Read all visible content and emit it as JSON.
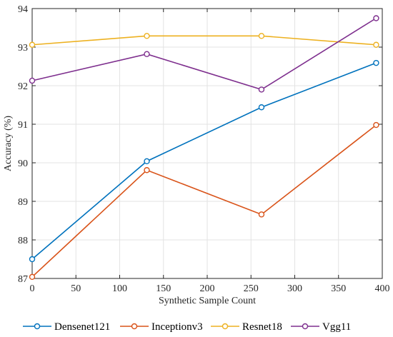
{
  "chart_data": {
    "type": "line",
    "xlabel": "Synthetic Sample Count",
    "ylabel": "Accuracy (%)",
    "xlim": [
      0,
      400
    ],
    "ylim": [
      87,
      94
    ],
    "xticks": [
      0,
      50,
      100,
      150,
      200,
      250,
      300,
      350,
      400
    ],
    "yticks": [
      87,
      88,
      89,
      90,
      91,
      92,
      93,
      94
    ],
    "grid": true,
    "marker": "circle",
    "legend_position": "bottom",
    "x": [
      0,
      131,
      262,
      393
    ],
    "series": [
      {
        "name": "Densenet121",
        "color": "#0072BD",
        "values": [
          87.5,
          90.04,
          91.44,
          92.59
        ]
      },
      {
        "name": "Inceptionv3",
        "color": "#D95319",
        "values": [
          87.04,
          89.81,
          88.66,
          90.98
        ]
      },
      {
        "name": "Resnet18",
        "color": "#EDB120",
        "values": [
          93.06,
          93.29,
          93.29,
          93.06
        ]
      },
      {
        "name": "Vgg11",
        "color": "#7E2F8E",
        "values": [
          92.13,
          92.82,
          91.9,
          93.75
        ]
      }
    ]
  }
}
